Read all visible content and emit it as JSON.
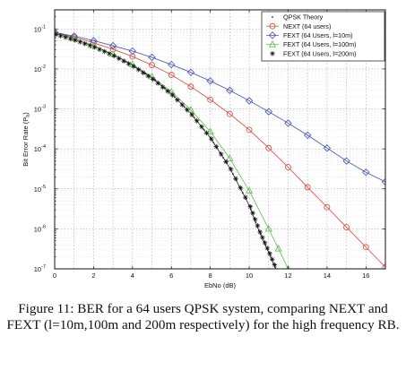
{
  "caption": "Figure 11: BER for a 64 users QPSK system, comparing NEXT and FEXT (l=10m,100m and 200m respectively) for the high frequency RB.",
  "chart_data": {
    "type": "line",
    "title": "",
    "xlabel": "EbNo (dB)",
    "ylabel": "Bit Error Rate (P",
    "ylabel_sub": "b",
    "ylabel_end": ")",
    "xlim": [
      0,
      17
    ],
    "ylim": [
      1e-07,
      0.3
    ],
    "yscale": "log",
    "grid": true,
    "legend_position": "top-right",
    "x_ticks": [
      0,
      2,
      4,
      6,
      8,
      10,
      12,
      14,
      16
    ],
    "y_ticks": [
      {
        "value": 0.1,
        "base": "10",
        "exp": "-1"
      },
      {
        "value": 0.01,
        "base": "10",
        "exp": "-2"
      },
      {
        "value": 0.001,
        "base": "10",
        "exp": "-3"
      },
      {
        "value": 0.0001,
        "base": "10",
        "exp": "-4"
      },
      {
        "value": 1e-05,
        "base": "10",
        "exp": "-5"
      },
      {
        "value": 1e-06,
        "base": "10",
        "exp": "-6"
      },
      {
        "value": 1e-07,
        "base": "10",
        "exp": "-7"
      }
    ],
    "series": [
      {
        "name": "QPSK Theory",
        "color": "#222222",
        "marker": "dot",
        "x": [
          0,
          1,
          2,
          3,
          4,
          5,
          6,
          7,
          8,
          9,
          10,
          10.5,
          11,
          11.5
        ],
        "y": [
          0.0786,
          0.0563,
          0.0375,
          0.0229,
          0.0125,
          0.00595,
          0.00239,
          0.000773,
          0.000191,
          3.36e-05,
          3.87e-06,
          9e-07,
          2.61e-07,
          7e-08
        ]
      },
      {
        "name": "NEXT (64 users)",
        "color": "#d9413a",
        "marker": "circle",
        "x": [
          0,
          1,
          2,
          3,
          4,
          5,
          6,
          7,
          8,
          9,
          10,
          11,
          12,
          13,
          14,
          15,
          16,
          17
        ],
        "y": [
          0.081,
          0.062,
          0.045,
          0.031,
          0.0205,
          0.0125,
          0.0071,
          0.0036,
          0.0017,
          0.00075,
          0.0003,
          0.000105,
          3.5e-05,
          1.1e-05,
          3.5e-06,
          1.1e-06,
          3.5e-07,
          1.1e-07
        ]
      },
      {
        "name": "FEXT (64 Users, l=10m)",
        "color": "#3d4bb5",
        "marker": "diamond",
        "x": [
          0,
          1,
          2,
          3,
          4,
          5,
          6,
          7,
          8,
          9,
          10,
          11,
          12,
          13,
          14,
          15,
          16,
          17
        ],
        "y": [
          0.082,
          0.066,
          0.051,
          0.038,
          0.028,
          0.0195,
          0.0128,
          0.0082,
          0.005,
          0.0029,
          0.0016,
          0.00085,
          0.00044,
          0.00022,
          0.000105,
          5e-05,
          2.6e-05,
          1.5e-05
        ]
      },
      {
        "name": "FEXT (64 Users, l=100m)",
        "color": "#5cbb4d",
        "marker": "triangle",
        "x": [
          0,
          1,
          2,
          3,
          4,
          5,
          6,
          7,
          8,
          9,
          10,
          11,
          11.5,
          12
        ],
        "y": [
          0.079,
          0.057,
          0.038,
          0.0235,
          0.013,
          0.0064,
          0.0027,
          0.00095,
          0.00027,
          5.8e-05,
          9e-06,
          1e-06,
          3.2e-07,
          1e-07
        ]
      },
      {
        "name": "FEXT (64 Users, l=200m)",
        "color": "#111111",
        "marker": "asterisk",
        "x": [
          0,
          1,
          2,
          3,
          4,
          5,
          6,
          7,
          8,
          9,
          10,
          10.5,
          11,
          11.5
        ],
        "y": [
          0.0786,
          0.0563,
          0.0375,
          0.0229,
          0.0125,
          0.00595,
          0.00239,
          0.000773,
          0.000191,
          3.36e-05,
          3.87e-06,
          9e-07,
          2.61e-07,
          7e-08
        ]
      }
    ]
  }
}
